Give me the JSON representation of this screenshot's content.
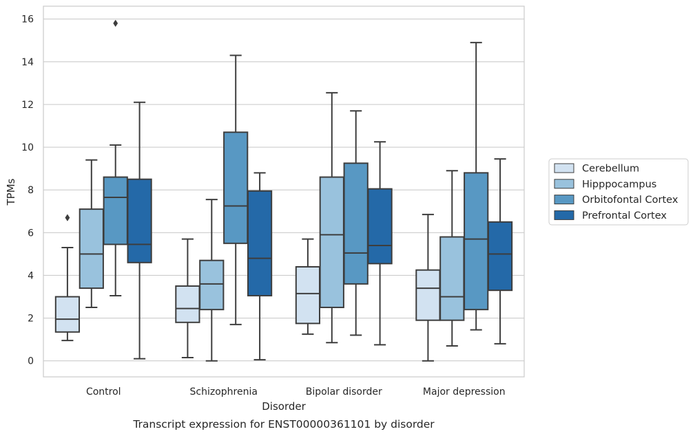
{
  "chart_data": {
    "type": "box",
    "caption": "Transcript expression for ENST00000361101 by disorder",
    "xlabel": "Disorder",
    "ylabel": "TPMs",
    "ylim": [
      -0.75,
      16.6
    ],
    "yticks": [
      0,
      2,
      4,
      6,
      8,
      10,
      12,
      14,
      16
    ],
    "categories": [
      "Control",
      "Schizophrenia",
      "Bipolar disorder",
      "Major depression"
    ],
    "grid": "horizontal",
    "legend_position": "right",
    "series": [
      {
        "name": "Cerebellum",
        "color": "#d2e2f1",
        "boxes": [
          {
            "whislo": 0.95,
            "q1": 1.35,
            "med": 1.95,
            "q3": 3.0,
            "whishi": 5.3,
            "fliers": [
              6.7
            ]
          },
          {
            "whislo": 0.15,
            "q1": 1.8,
            "med": 2.45,
            "q3": 3.5,
            "whishi": 5.7,
            "fliers": []
          },
          {
            "whislo": 1.25,
            "q1": 1.75,
            "med": 3.15,
            "q3": 4.4,
            "whishi": 5.7,
            "fliers": []
          },
          {
            "whislo": 0.0,
            "q1": 1.9,
            "med": 3.4,
            "q3": 4.25,
            "whishi": 6.85,
            "fliers": []
          }
        ]
      },
      {
        "name": "Hipppocampus",
        "color": "#99c2dd",
        "boxes": [
          {
            "whislo": 2.5,
            "q1": 3.4,
            "med": 5.0,
            "q3": 7.1,
            "whishi": 9.4,
            "fliers": []
          },
          {
            "whislo": 0.0,
            "q1": 2.4,
            "med": 3.6,
            "q3": 4.7,
            "whishi": 7.55,
            "fliers": []
          },
          {
            "whislo": 0.85,
            "q1": 2.5,
            "med": 5.9,
            "q3": 8.6,
            "whishi": 12.55,
            "fliers": []
          },
          {
            "whislo": 0.7,
            "q1": 1.9,
            "med": 3.0,
            "q3": 5.8,
            "whishi": 8.9,
            "fliers": []
          }
        ]
      },
      {
        "name": "Orbitofontal Cortex",
        "color": "#5898c3",
        "boxes": [
          {
            "whislo": 3.05,
            "q1": 5.45,
            "med": 7.65,
            "q3": 8.6,
            "whishi": 10.1,
            "fliers": [
              15.8
            ]
          },
          {
            "whislo": 1.7,
            "q1": 5.5,
            "med": 7.25,
            "q3": 10.7,
            "whishi": 14.3,
            "fliers": []
          },
          {
            "whislo": 1.2,
            "q1": 3.6,
            "med": 5.05,
            "q3": 9.25,
            "whishi": 11.7,
            "fliers": []
          },
          {
            "whislo": 1.45,
            "q1": 2.4,
            "med": 5.7,
            "q3": 8.8,
            "whishi": 14.9,
            "fliers": []
          }
        ]
      },
      {
        "name": "Prefrontal Cortex",
        "color": "#2469a8",
        "boxes": [
          {
            "whislo": 0.1,
            "q1": 4.6,
            "med": 5.45,
            "q3": 8.5,
            "whishi": 12.1,
            "fliers": []
          },
          {
            "whislo": 0.05,
            "q1": 3.05,
            "med": 4.8,
            "q3": 7.95,
            "whishi": 8.8,
            "fliers": []
          },
          {
            "whislo": 0.75,
            "q1": 4.55,
            "med": 5.4,
            "q3": 8.05,
            "whishi": 10.25,
            "fliers": []
          },
          {
            "whislo": 0.8,
            "q1": 3.3,
            "med": 5.0,
            "q3": 6.5,
            "whishi": 9.45,
            "fliers": []
          }
        ]
      }
    ]
  }
}
